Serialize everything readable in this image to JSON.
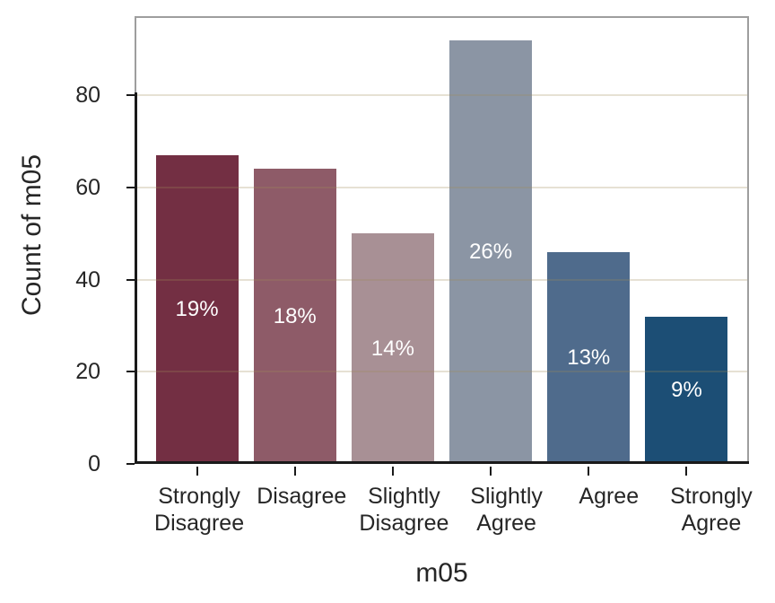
{
  "figure": {
    "background": "#ffffff",
    "border_color": "#9e9e9e",
    "axis_color": "#1a1a1a",
    "text_color": "#262626",
    "grid_color": "rgba(160,138,90,0.26)",
    "bar_label_color": "#ffffff"
  },
  "chart_data": {
    "type": "bar",
    "title": "",
    "xlabel": "m05",
    "ylabel": "Count of m05",
    "categories": [
      "Strongly Disagree",
      "Disagree",
      "Slightly Disagree",
      "Slightly Agree",
      "Agree",
      "Strongly Agree"
    ],
    "values": [
      67,
      64,
      50,
      92,
      46,
      32
    ],
    "bar_labels": [
      "19%",
      "18%",
      "14%",
      "26%",
      "13%",
      "9%"
    ],
    "bar_colors": [
      "#732f43",
      "#8e5b68",
      "#a89095",
      "#8b95a4",
      "#4f6b8c",
      "#1c4e75"
    ],
    "y_ticks": [
      0,
      20,
      40,
      60,
      80
    ],
    "ylim": [
      0,
      97.2
    ],
    "grid": true,
    "legend": false,
    "bar_label_position": "center"
  }
}
